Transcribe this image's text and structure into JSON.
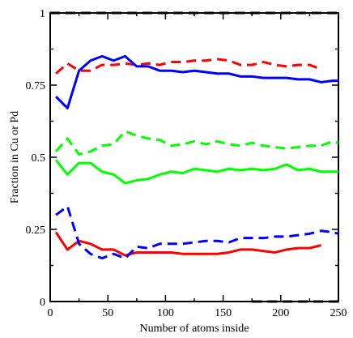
{
  "chart_data": {
    "type": "line",
    "xlabel": "Number of atoms inside",
    "ylabel": "Fraction in Cu or Pd",
    "xlim": [
      0,
      250
    ],
    "ylim": [
      0,
      1
    ],
    "x_ticks": [
      "0",
      "50",
      "100",
      "150",
      "200",
      "250"
    ],
    "y_ticks": [
      "0",
      "0.25",
      "0.5",
      "0.75",
      "1"
    ],
    "x_tick_values": [
      0,
      50,
      100,
      150,
      200,
      250
    ],
    "y_tick_values": [
      0,
      0.25,
      0.5,
      0.75,
      1
    ],
    "grid": false,
    "legend": "none",
    "series": [
      {
        "color": "#ff0000",
        "dash": "solid",
        "x": [
          5,
          15,
          25,
          35,
          45,
          55,
          65,
          75,
          85,
          95,
          105,
          115,
          125,
          135,
          145,
          155,
          165,
          175,
          185,
          195,
          205,
          215,
          225,
          235
        ],
        "y": [
          0.24,
          0.18,
          0.21,
          0.2,
          0.18,
          0.18,
          0.16,
          0.17,
          0.17,
          0.17,
          0.17,
          0.165,
          0.165,
          0.165,
          0.165,
          0.17,
          0.18,
          0.18,
          0.175,
          0.17,
          0.18,
          0.185,
          0.185,
          0.195
        ]
      },
      {
        "color": "#ff0000",
        "dash": "dashed",
        "x": [
          5,
          15,
          25,
          35,
          45,
          55,
          65,
          75,
          85,
          95,
          105,
          115,
          125,
          135,
          145,
          155,
          165,
          175,
          185,
          195,
          205,
          215,
          225,
          235
        ],
        "y": [
          0.79,
          0.825,
          0.8,
          0.8,
          0.82,
          0.82,
          0.825,
          0.82,
          0.825,
          0.82,
          0.83,
          0.83,
          0.835,
          0.835,
          0.84,
          0.835,
          0.82,
          0.82,
          0.83,
          0.82,
          0.815,
          0.82,
          0.82,
          0.805
        ]
      },
      {
        "color": "#00ff00",
        "dash": "solid",
        "x": [
          5,
          15,
          25,
          35,
          45,
          55,
          65,
          75,
          85,
          95,
          105,
          115,
          125,
          135,
          145,
          155,
          165,
          175,
          185,
          195,
          205,
          215,
          225,
          235,
          245,
          250
        ],
        "y": [
          0.49,
          0.44,
          0.48,
          0.48,
          0.45,
          0.44,
          0.41,
          0.42,
          0.425,
          0.44,
          0.45,
          0.445,
          0.46,
          0.455,
          0.45,
          0.46,
          0.455,
          0.46,
          0.455,
          0.46,
          0.475,
          0.455,
          0.46,
          0.45,
          0.45,
          0.45
        ]
      },
      {
        "color": "#00ff00",
        "dash": "dashed",
        "x": [
          5,
          15,
          25,
          35,
          45,
          55,
          65,
          75,
          85,
          95,
          105,
          115,
          125,
          135,
          145,
          155,
          165,
          175,
          185,
          195,
          205,
          215,
          225,
          235,
          245,
          250
        ],
        "y": [
          0.52,
          0.565,
          0.51,
          0.52,
          0.54,
          0.545,
          0.59,
          0.575,
          0.565,
          0.56,
          0.54,
          0.545,
          0.555,
          0.545,
          0.555,
          0.545,
          0.54,
          0.55,
          0.54,
          0.535,
          0.53,
          0.535,
          0.54,
          0.54,
          0.555,
          0.55
        ]
      },
      {
        "color": "#0000ff",
        "dash": "solid",
        "x": [
          5,
          15,
          25,
          35,
          45,
          55,
          65,
          75,
          85,
          95,
          105,
          115,
          125,
          135,
          145,
          155,
          165,
          175,
          185,
          195,
          205,
          215,
          225,
          235,
          245,
          250
        ],
        "y": [
          0.71,
          0.67,
          0.8,
          0.835,
          0.85,
          0.835,
          0.85,
          0.815,
          0.815,
          0.8,
          0.8,
          0.795,
          0.8,
          0.795,
          0.79,
          0.79,
          0.78,
          0.78,
          0.775,
          0.775,
          0.775,
          0.77,
          0.77,
          0.76,
          0.765,
          0.765
        ]
      },
      {
        "color": "#0000ff",
        "dash": "dashed",
        "x": [
          5,
          15,
          25,
          35,
          45,
          55,
          65,
          75,
          85,
          95,
          105,
          115,
          125,
          135,
          145,
          155,
          165,
          175,
          185,
          195,
          205,
          215,
          225,
          235,
          245,
          250
        ],
        "y": [
          0.3,
          0.33,
          0.2,
          0.165,
          0.15,
          0.165,
          0.15,
          0.19,
          0.185,
          0.2,
          0.2,
          0.2,
          0.205,
          0.21,
          0.21,
          0.205,
          0.22,
          0.22,
          0.22,
          0.225,
          0.225,
          0.23,
          0.235,
          0.245,
          0.24,
          0.235
        ]
      },
      {
        "color": "#000000",
        "dash": "dashed",
        "x": [
          0,
          250
        ],
        "y": [
          1,
          1
        ]
      },
      {
        "color": "#000000",
        "dash": "dashed",
        "x": [
          175,
          250
        ],
        "y": [
          0,
          0
        ]
      }
    ]
  }
}
